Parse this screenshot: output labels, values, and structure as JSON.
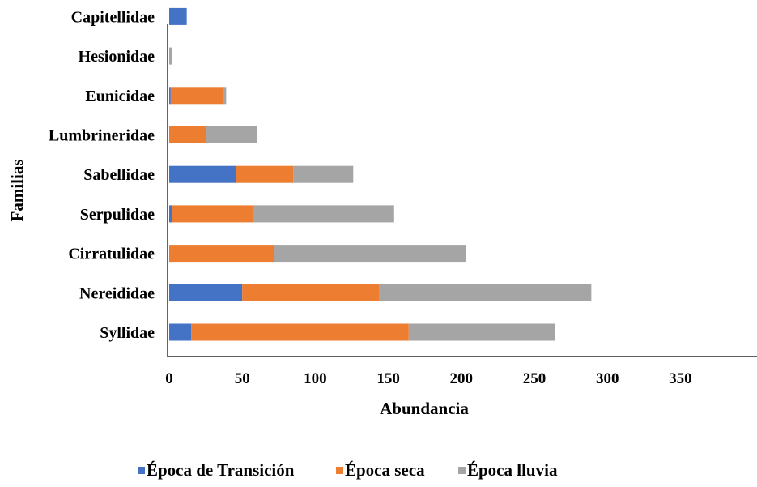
{
  "chart_data": {
    "type": "bar",
    "orientation": "horizontal",
    "stacked": true,
    "categories": [
      "Syllidae",
      "Nereididae",
      "Cirratulidae",
      "Serpulidae",
      "Sabellidae",
      "Lumbrineridae",
      "Eunicidae",
      "Hesionidae",
      "Capitellidae"
    ],
    "series": [
      {
        "name": "Época de Transición",
        "color": "#4472C4",
        "values": [
          15,
          50,
          0,
          2,
          46,
          0,
          1,
          0,
          12
        ]
      },
      {
        "name": "Época seca",
        "color": "#ED7D31",
        "values": [
          149,
          94,
          72,
          56,
          39,
          25,
          36,
          0,
          0
        ]
      },
      {
        "name": "Época lluvia",
        "color": "#A5A5A5",
        "values": [
          100,
          145,
          131,
          96,
          41,
          35,
          2,
          2,
          0
        ]
      }
    ],
    "xlabel": "Abundancia",
    "ylabel": "Familias",
    "xlim": [
      0,
      350
    ],
    "xticks": [
      0,
      50,
      100,
      150,
      200,
      250,
      300,
      350
    ],
    "grid": false,
    "legend_position": "bottom"
  }
}
